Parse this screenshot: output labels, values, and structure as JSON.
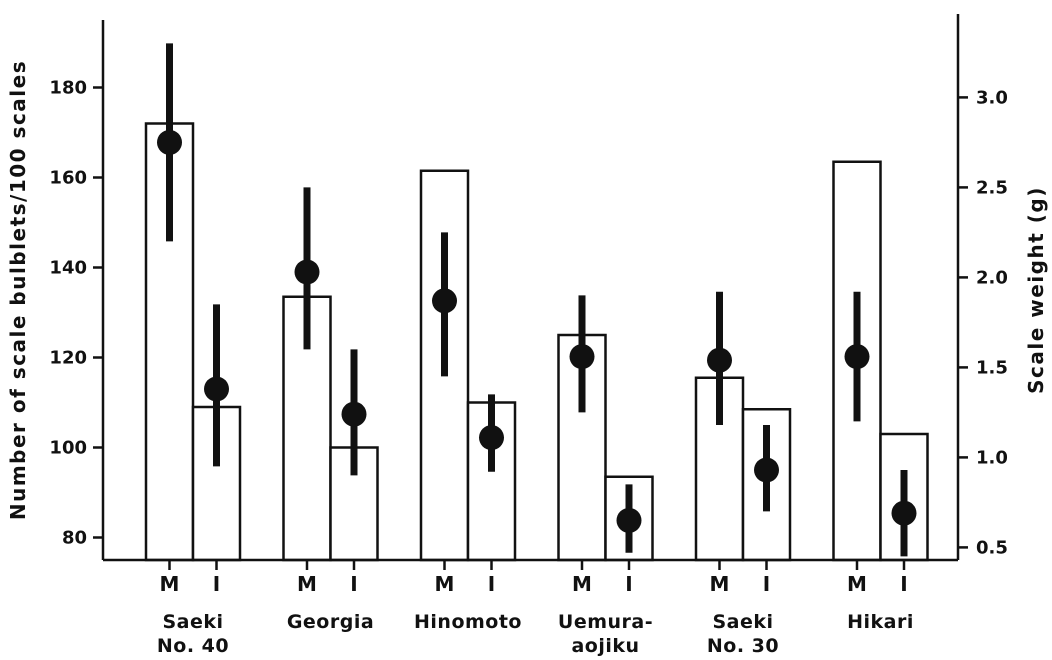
{
  "chart_data": {
    "type": "bar",
    "title": "",
    "ylabel": "Number of scale bulblets/100 scales",
    "y2label": "Scale weight (g)",
    "ylim": [
      75,
      195
    ],
    "yticks": [
      80,
      100,
      120,
      140,
      160,
      180
    ],
    "y2lim": [
      0.43,
      3.43
    ],
    "y2ticks": [
      "0.5",
      "1.0",
      "1.5",
      "2.0",
      "2.5",
      "3.0"
    ],
    "sub_categories": [
      "M",
      "I"
    ],
    "categories": [
      {
        "label_lines": [
          "Saeki",
          "No. 40"
        ],
        "bars": [
          {
            "sub": "M",
            "bulblets": 172,
            "weight": 2.75,
            "weight_low": 2.2,
            "weight_high": 3.3
          },
          {
            "sub": "I",
            "bulblets": 109,
            "weight": 1.38,
            "weight_low": 0.95,
            "weight_high": 1.85
          }
        ]
      },
      {
        "label_lines": [
          "Georgia"
        ],
        "bars": [
          {
            "sub": "M",
            "bulblets": 133.5,
            "weight": 2.03,
            "weight_low": 1.6,
            "weight_high": 2.5
          },
          {
            "sub": "I",
            "bulblets": 100,
            "weight": 1.24,
            "weight_low": 0.9,
            "weight_high": 1.6
          }
        ]
      },
      {
        "label_lines": [
          "Hinomoto"
        ],
        "bars": [
          {
            "sub": "M",
            "bulblets": 161.5,
            "weight": 1.87,
            "weight_low": 1.45,
            "weight_high": 2.25
          },
          {
            "sub": "I",
            "bulblets": 110,
            "weight": 1.11,
            "weight_low": 0.92,
            "weight_high": 1.35
          }
        ]
      },
      {
        "label_lines": [
          "Uemura-",
          "aojiku"
        ],
        "bars": [
          {
            "sub": "M",
            "bulblets": 125,
            "weight": 1.56,
            "weight_low": 1.25,
            "weight_high": 1.9
          },
          {
            "sub": "I",
            "bulblets": 93.5,
            "weight": 0.65,
            "weight_low": 0.47,
            "weight_high": 0.85
          }
        ]
      },
      {
        "label_lines": [
          "Saeki",
          "No. 30"
        ],
        "bars": [
          {
            "sub": "M",
            "bulblets": 115.5,
            "weight": 1.54,
            "weight_low": 1.18,
            "weight_high": 1.92
          },
          {
            "sub": "I",
            "bulblets": 108.5,
            "weight": 0.93,
            "weight_low": 0.7,
            "weight_high": 1.18
          }
        ]
      },
      {
        "label_lines": [
          "Hikari"
        ],
        "bars": [
          {
            "sub": "M",
            "bulblets": 163.5,
            "weight": 1.56,
            "weight_low": 1.2,
            "weight_high": 1.92
          },
          {
            "sub": "I",
            "bulblets": 103,
            "weight": 0.69,
            "weight_low": 0.45,
            "weight_high": 0.93
          }
        ]
      }
    ],
    "grid": false,
    "legend": "none"
  }
}
